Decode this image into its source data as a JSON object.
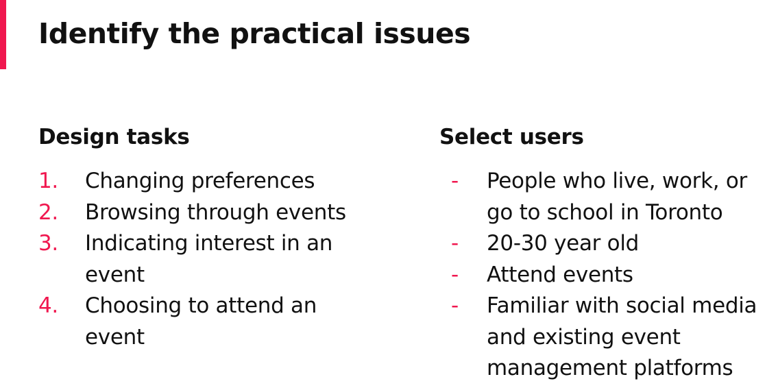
{
  "slide": {
    "title": "Identify the practical issues",
    "accent_color": "#f0174f"
  },
  "design_tasks": {
    "heading": "Design tasks",
    "items": [
      {
        "marker": "1.",
        "text": "Changing preferences"
      },
      {
        "marker": "2.",
        "text": "Browsing through events"
      },
      {
        "marker": "3.",
        "text": "Indicating interest in an event"
      },
      {
        "marker": "4.",
        "text": "Choosing to attend an event"
      }
    ]
  },
  "select_users": {
    "heading": "Select users",
    "items": [
      {
        "marker": "-",
        "text": "People who live, work, or go to school in Toronto"
      },
      {
        "marker": "-",
        "text": "20-30 year old"
      },
      {
        "marker": "-",
        "text": "Attend events"
      },
      {
        "marker": "-",
        "text": "Familiar with social media and existing event management platforms"
      }
    ]
  }
}
